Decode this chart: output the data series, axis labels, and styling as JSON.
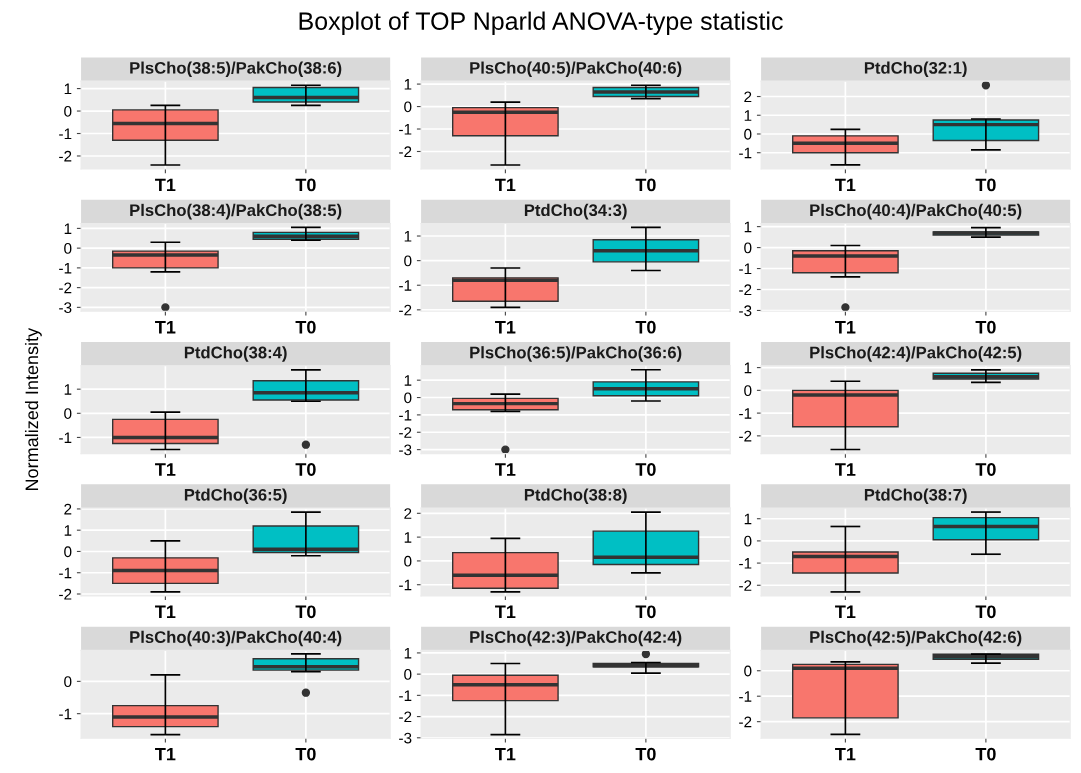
{
  "chart_data": [
    {
      "type": "box",
      "title": "PlsCho(38:5)/PakCho(38:6)",
      "categories": [
        "T1",
        "T0"
      ],
      "colors": [
        "#f8766d",
        "#00bfc4"
      ],
      "ylim": [
        -2.58,
        1.33
      ],
      "yticks": [
        -2,
        -1,
        0,
        1
      ],
      "grid": true,
      "boxes": [
        {
          "low": -2.4,
          "q1": -1.3,
          "median": -0.55,
          "q3": 0.05,
          "high": 0.25
        },
        {
          "low": 0.25,
          "q1": 0.4,
          "median": 0.6,
          "q3": 1.05,
          "high": 1.15
        }
      ]
    },
    {
      "type": "box",
      "title": "PlsCho(40:5)/PakCho(40:6)",
      "annotations": [
        "Boxplot of TOP Nparld ANOVA-type statistic"
      ],
      "categories": [
        "T1",
        "T0"
      ],
      "colors": [
        "#f8766d",
        "#00bfc4"
      ],
      "ylim": [
        -2.78,
        1.13
      ],
      "yticks": [
        -2,
        -1,
        0,
        1
      ],
      "grid": true,
      "boxes": [
        {
          "low": -2.6,
          "q1": -1.3,
          "median": -0.25,
          "q3": -0.05,
          "high": 0.2
        },
        {
          "low": 0.35,
          "q1": 0.45,
          "median": 0.65,
          "q3": 0.85,
          "high": 0.95
        }
      ]
    },
    {
      "type": "box",
      "title": "PtdCho(32:1)",
      "categories": [
        "T1",
        "T0"
      ],
      "colors": [
        "#f8766d",
        "#00bfc4"
      ],
      "ylim": [
        -1.87,
        2.82
      ],
      "yticks": [
        -1,
        0,
        1,
        2
      ],
      "grid": true,
      "boxes": [
        {
          "low": -1.65,
          "q1": -1.0,
          "median": -0.5,
          "q3": -0.1,
          "high": 0.25
        },
        {
          "low": -0.85,
          "q1": -0.35,
          "median": 0.5,
          "q3": 0.75,
          "high": 0.8,
          "outliers": [
            2.6
          ]
        }
      ]
    },
    {
      "type": "box",
      "title": "PlsCho(38:4)/PakCho(38:5)",
      "categories": [
        "T1",
        "T0"
      ],
      "colors": [
        "#f8766d",
        "#00bfc4"
      ],
      "ylim": [
        -3.2,
        1.25
      ],
      "yticks": [
        -3,
        -2,
        -1,
        0,
        1
      ],
      "grid": true,
      "boxes": [
        {
          "low": -1.2,
          "q1": -1.0,
          "median": -0.35,
          "q3": -0.15,
          "high": 0.3,
          "outliers": [
            -3.0
          ]
        },
        {
          "low": 0.4,
          "q1": 0.45,
          "median": 0.6,
          "q3": 0.8,
          "high": 1.05
        }
      ]
    },
    {
      "type": "box",
      "title": "PtdCho(34:3)",
      "categories": [
        "T1",
        "T0"
      ],
      "colors": [
        "#f8766d",
        "#00bfc4"
      ],
      "ylim": [
        -2.06,
        1.51
      ],
      "yticks": [
        -2,
        -1,
        0,
        1
      ],
      "grid": true,
      "boxes": [
        {
          "low": -1.9,
          "q1": -1.65,
          "median": -0.8,
          "q3": -0.7,
          "high": -0.3
        },
        {
          "low": -0.4,
          "q1": -0.05,
          "median": 0.4,
          "q3": 0.85,
          "high": 1.35
        }
      ]
    },
    {
      "type": "box",
      "title": "PlsCho(40:4)/PakCho(40:5)",
      "categories": [
        "T1",
        "T0"
      ],
      "colors": [
        "#f8766d",
        "#00bfc4"
      ],
      "ylim": [
        -3.04,
        1.15
      ],
      "yticks": [
        -3,
        -2,
        -1,
        0,
        1
      ],
      "grid": true,
      "boxes": [
        {
          "low": -1.4,
          "q1": -1.2,
          "median": -0.4,
          "q3": -0.15,
          "high": 0.1,
          "outliers": [
            -2.85
          ]
        },
        {
          "low": 0.5,
          "q1": 0.6,
          "median": 0.7,
          "q3": 0.75,
          "high": 0.95
        }
      ]
    },
    {
      "type": "box",
      "title": "PtdCho(38:4)",
      "ylabel": "Normalized Intensity",
      "categories": [
        "T1",
        "T0"
      ],
      "colors": [
        "#f8766d",
        "#00bfc4"
      ],
      "ylim": [
        -1.67,
        1.97
      ],
      "yticks": [
        -1,
        0,
        1
      ],
      "grid": true,
      "boxes": [
        {
          "low": -1.5,
          "q1": -1.25,
          "median": -1.0,
          "q3": -0.25,
          "high": 0.05
        },
        {
          "low": 0.5,
          "q1": 0.55,
          "median": 0.85,
          "q3": 1.35,
          "high": 1.8,
          "outliers": [
            -1.3
          ]
        }
      ]
    },
    {
      "type": "box",
      "title": "PlsCho(36:5)/PakCho(36:6)",
      "categories": [
        "T1",
        "T0"
      ],
      "colors": [
        "#f8766d",
        "#00bfc4"
      ],
      "ylim": [
        -3.23,
        1.83
      ],
      "yticks": [
        -3,
        -2,
        -1,
        0,
        1
      ],
      "grid": true,
      "boxes": [
        {
          "low": -0.8,
          "q1": -0.7,
          "median": -0.35,
          "q3": -0.05,
          "high": 0.2,
          "outliers": [
            -3.0
          ]
        },
        {
          "low": -0.2,
          "q1": 0.1,
          "median": 0.5,
          "q3": 0.9,
          "high": 1.6
        }
      ]
    },
    {
      "type": "box",
      "title": "PlsCho(42:4)/PakCho(42:5)",
      "categories": [
        "T1",
        "T0"
      ],
      "colors": [
        "#f8766d",
        "#00bfc4"
      ],
      "ylim": [
        -2.78,
        1.08
      ],
      "yticks": [
        -2,
        -1,
        0,
        1
      ],
      "grid": true,
      "boxes": [
        {
          "low": -2.6,
          "q1": -1.6,
          "median": -0.2,
          "q3": 0.0,
          "high": 0.4
        },
        {
          "low": 0.35,
          "q1": 0.5,
          "median": 0.6,
          "q3": 0.75,
          "high": 0.9
        }
      ]
    },
    {
      "type": "box",
      "title": "PtdCho(36:5)",
      "categories": [
        "T1",
        "T0"
      ],
      "colors": [
        "#f8766d",
        "#00bfc4"
      ],
      "ylim": [
        -2.09,
        2.04
      ],
      "yticks": [
        -2,
        -1,
        0,
        1,
        2
      ],
      "grid": true,
      "boxes": [
        {
          "low": -1.9,
          "q1": -1.5,
          "median": -0.9,
          "q3": -0.3,
          "high": 0.5
        },
        {
          "low": -0.2,
          "q1": -0.05,
          "median": 0.1,
          "q3": 1.2,
          "high": 1.85
        }
      ]
    },
    {
      "type": "box",
      "title": "PtdCho(38:8)",
      "categories": [
        "T1",
        "T0"
      ],
      "colors": [
        "#f8766d",
        "#00bfc4"
      ],
      "ylim": [
        -1.47,
        2.22
      ],
      "yticks": [
        -1,
        0,
        1,
        2
      ],
      "grid": true,
      "boxes": [
        {
          "low": -1.3,
          "q1": -1.15,
          "median": -0.6,
          "q3": 0.35,
          "high": 0.95
        },
        {
          "low": -0.5,
          "q1": -0.15,
          "median": 0.15,
          "q3": 1.25,
          "high": 2.05
        }
      ]
    },
    {
      "type": "box",
      "title": "PtdCho(38:7)",
      "categories": [
        "T1",
        "T0"
      ],
      "colors": [
        "#f8766d",
        "#00bfc4"
      ],
      "ylim": [
        -2.48,
        1.48
      ],
      "yticks": [
        -2,
        -1,
        0,
        1
      ],
      "grid": true,
      "boxes": [
        {
          "low": -2.3,
          "q1": -1.45,
          "median": -0.7,
          "q3": -0.5,
          "high": 0.65
        },
        {
          "low": -0.6,
          "q1": 0.05,
          "median": 0.65,
          "q3": 1.05,
          "high": 1.3
        }
      ]
    },
    {
      "type": "box",
      "title": "PlsCho(40:3)/PakCho(40:4)",
      "categories": [
        "T1",
        "T0"
      ],
      "colors": [
        "#f8766d",
        "#00bfc4"
      ],
      "ylim": [
        -1.76,
        0.96
      ],
      "yticks": [
        -1,
        0
      ],
      "grid": true,
      "boxes": [
        {
          "low": -1.65,
          "q1": -1.4,
          "median": -1.1,
          "q3": -0.75,
          "high": 0.2
        },
        {
          "low": 0.3,
          "q1": 0.35,
          "median": 0.45,
          "q3": 0.7,
          "high": 0.85,
          "outliers": [
            -0.35
          ]
        }
      ]
    },
    {
      "type": "box",
      "title": "PlsCho(42:3)/PakCho(42:4)",
      "categories": [
        "T1",
        "T0"
      ],
      "colors": [
        "#f8766d",
        "#00bfc4"
      ],
      "ylim": [
        -3.02,
        1.12
      ],
      "yticks": [
        -3,
        -2,
        -1,
        0,
        1
      ],
      "grid": true,
      "boxes": [
        {
          "low": -2.85,
          "q1": -1.25,
          "median": -0.5,
          "q3": -0.05,
          "high": 0.5
        },
        {
          "low": 0.05,
          "q1": 0.35,
          "median": 0.4,
          "q3": 0.5,
          "high": 0.55,
          "outliers": [
            0.95
          ]
        }
      ]
    },
    {
      "type": "box",
      "title": "PlsCho(42:5)/PakCho(42:6)",
      "categories": [
        "T1",
        "T0"
      ],
      "colors": [
        "#f8766d",
        "#00bfc4"
      ],
      "ylim": [
        -2.65,
        0.8
      ],
      "yticks": [
        -2,
        -1,
        0
      ],
      "grid": true,
      "boxes": [
        {
          "low": -2.5,
          "q1": -1.85,
          "median": 0.1,
          "q3": 0.25,
          "high": 0.35
        },
        {
          "low": 0.3,
          "q1": 0.45,
          "median": 0.55,
          "q3": 0.65,
          "high": 0.65
        }
      ]
    }
  ]
}
